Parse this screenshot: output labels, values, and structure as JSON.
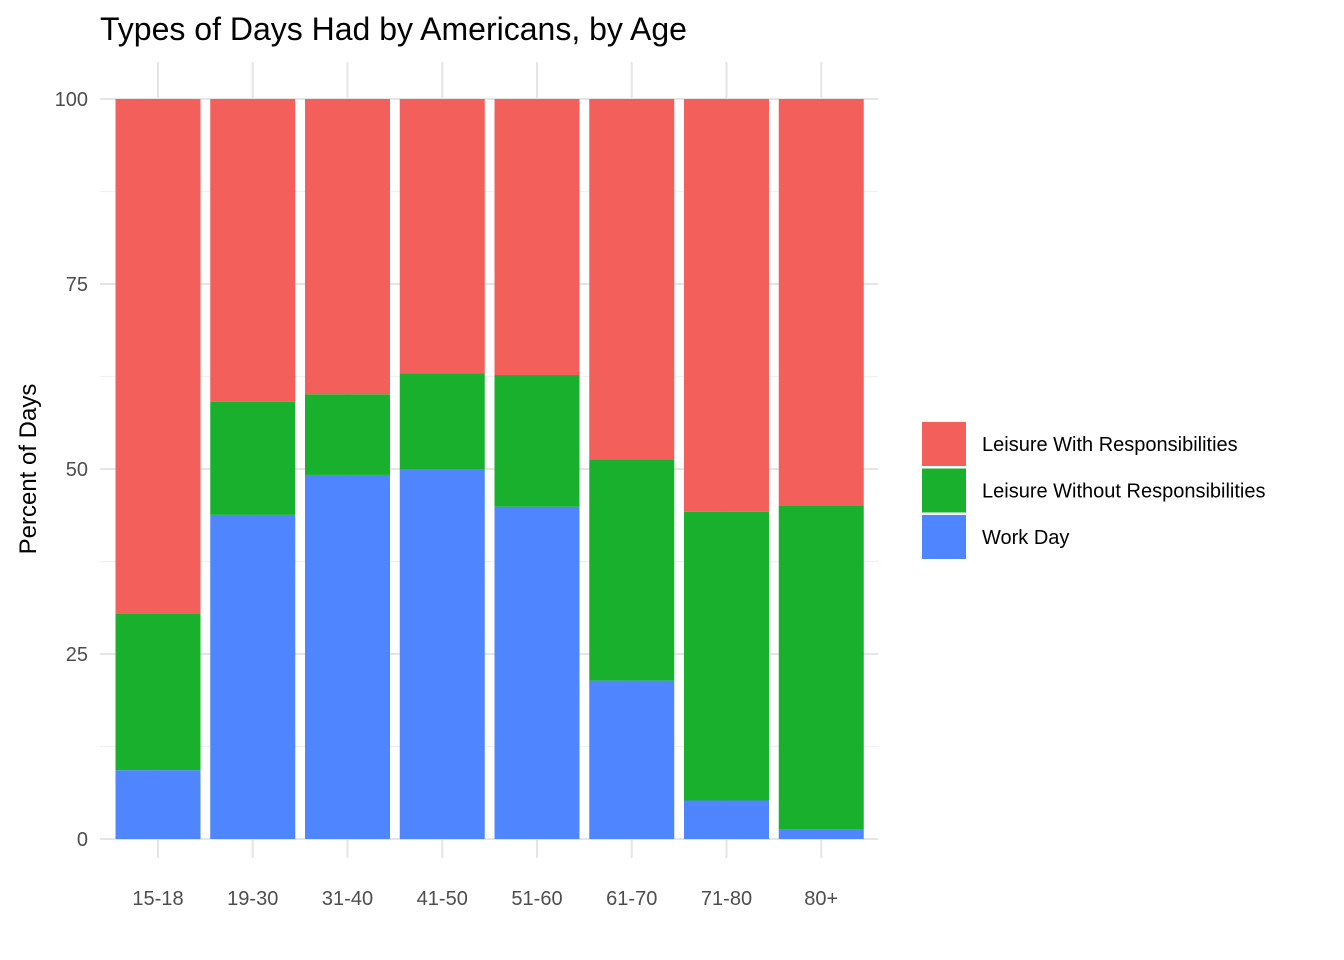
{
  "chart_data": {
    "type": "bar",
    "stacked": true,
    "title": "Types of Days Had by Americans, by Age",
    "xlabel": "",
    "ylabel": "Percent of Days",
    "ylim": [
      0,
      100
    ],
    "yticks": [
      "0",
      "25",
      "50",
      "75",
      "100"
    ],
    "grid": true,
    "legend_position": "right",
    "categories": [
      "15-18",
      "19-30",
      "31-40",
      "41-50",
      "51-60",
      "61-70",
      "71-80",
      "80+"
    ],
    "series": [
      {
        "name": "Work Day",
        "color": "#4f86ff",
        "values": [
          9.3,
          43.8,
          49.2,
          49.9,
          44.9,
          21.4,
          5.2,
          1.3
        ]
      },
      {
        "name": "Leisure Without Responsibilities",
        "color": "#18b02d",
        "values": [
          21.2,
          15.3,
          10.9,
          13.0,
          17.8,
          29.9,
          39.0,
          43.7
        ]
      },
      {
        "name": "Leisure With Responsibilities",
        "color": "#f3605c",
        "values": [
          69.5,
          40.9,
          39.9,
          37.1,
          37.3,
          48.7,
          55.8,
          55.0
        ]
      }
    ],
    "legend_order": [
      "Leisure With Responsibilities",
      "Leisure Without Responsibilities",
      "Work Day"
    ]
  }
}
